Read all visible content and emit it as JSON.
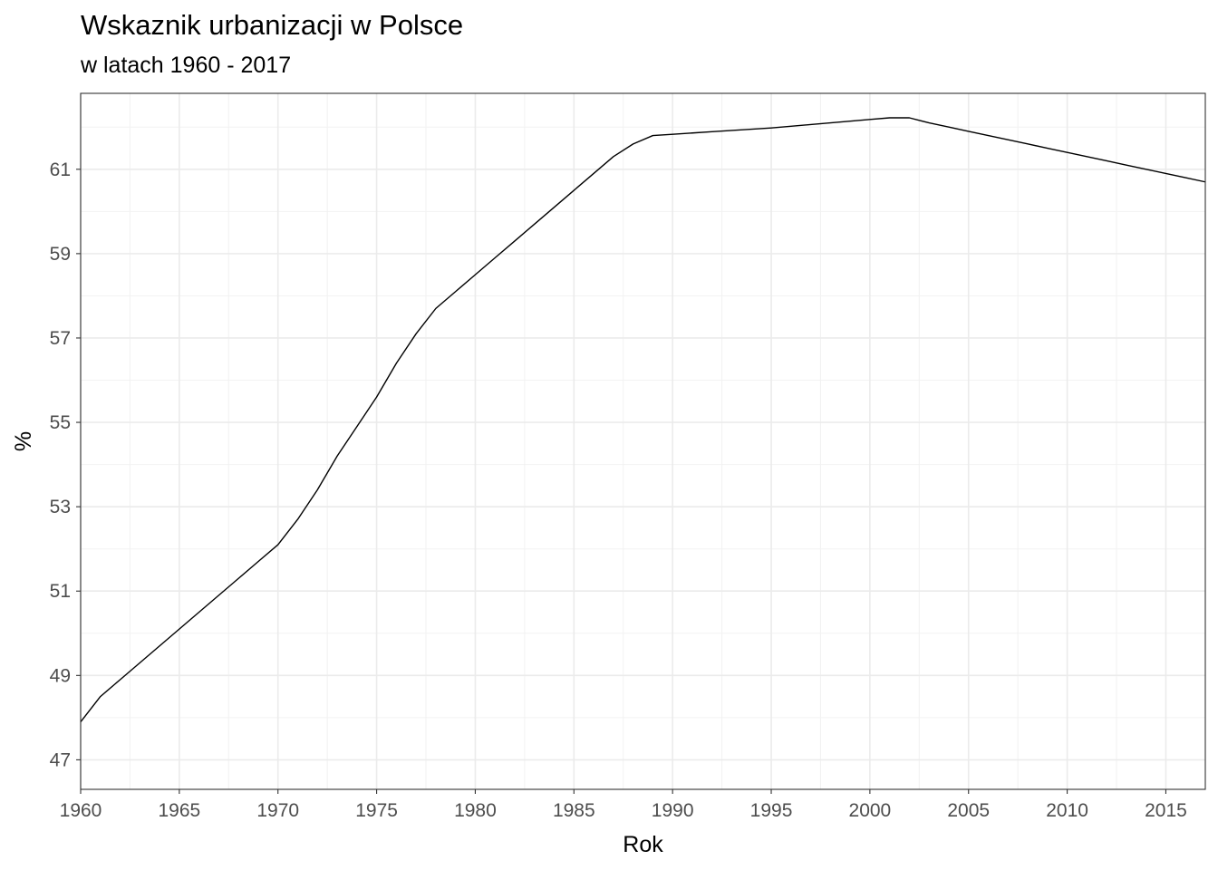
{
  "chart_data": {
    "type": "line",
    "title": "Wskaznik urbanizacji w Polsce",
    "subtitle": "w latach 1960 - 2017",
    "xlabel": "Rok",
    "ylabel": "%",
    "xlim": [
      1960,
      2017
    ],
    "ylim": [
      46.3,
      62.8
    ],
    "x_ticks": [
      1960,
      1965,
      1970,
      1975,
      1980,
      1985,
      1990,
      1995,
      2000,
      2005,
      2010,
      2015
    ],
    "y_ticks": [
      47,
      49,
      51,
      53,
      55,
      57,
      59,
      61
    ],
    "grid": true,
    "series": [
      {
        "color": "#000000",
        "x": [
          1960,
          1961,
          1962,
          1963,
          1964,
          1965,
          1966,
          1967,
          1968,
          1969,
          1970,
          1971,
          1972,
          1973,
          1974,
          1975,
          1976,
          1977,
          1978,
          1979,
          1980,
          1981,
          1982,
          1983,
          1984,
          1985,
          1986,
          1987,
          1988,
          1989,
          1990,
          1991,
          1992,
          1993,
          1994,
          1995,
          1996,
          1997,
          1998,
          1999,
          2000,
          2001,
          2002,
          2003,
          2004,
          2005,
          2006,
          2007,
          2008,
          2009,
          2010,
          2011,
          2012,
          2013,
          2014,
          2015,
          2016,
          2017
        ],
        "values": [
          47.9,
          48.5,
          48.9,
          49.3,
          49.7,
          50.1,
          50.5,
          50.9,
          51.3,
          51.7,
          52.1,
          52.7,
          53.4,
          54.2,
          54.9,
          55.6,
          56.4,
          57.1,
          57.7,
          58.1,
          58.5,
          58.9,
          59.3,
          59.7,
          60.1,
          60.5,
          60.9,
          61.3,
          61.6,
          61.8,
          61.83,
          61.86,
          61.89,
          61.92,
          61.95,
          61.98,
          62.02,
          62.06,
          62.1,
          62.14,
          62.18,
          62.22,
          62.22,
          62.1,
          62.0,
          61.9,
          61.8,
          61.7,
          61.6,
          61.5,
          61.4,
          61.3,
          61.2,
          61.1,
          61.0,
          60.9,
          60.8,
          60.7
        ]
      }
    ]
  }
}
